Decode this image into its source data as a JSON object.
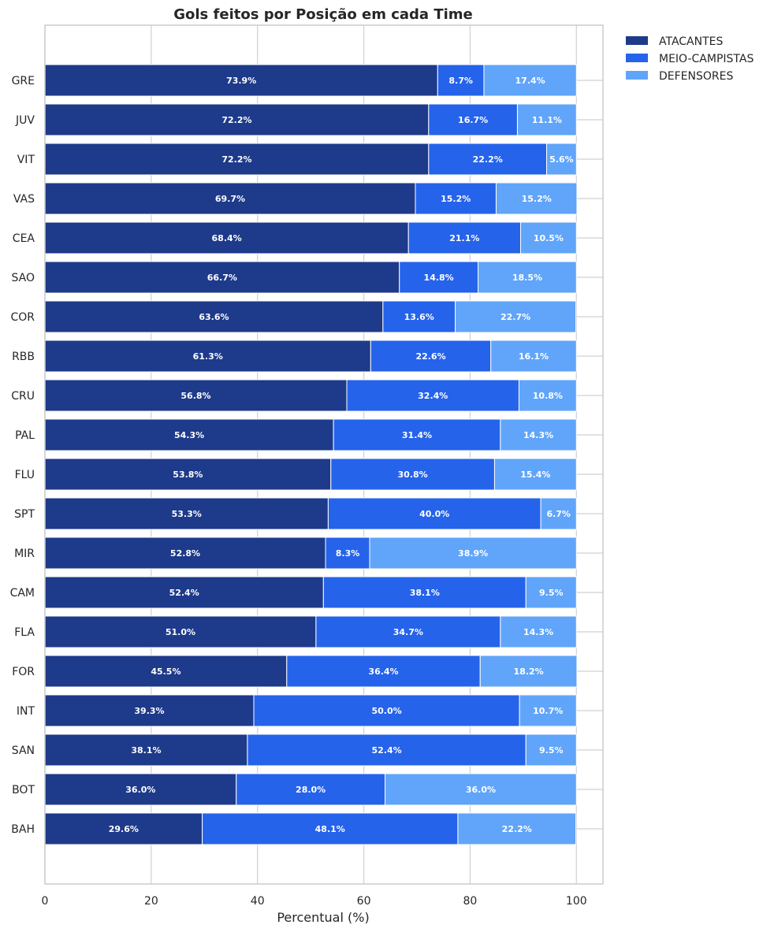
{
  "chart_data": {
    "type": "bar",
    "orientation": "horizontal",
    "stacked": true,
    "title": "Gols feitos por Posição em cada Time",
    "xlabel": "Percentual (%)",
    "ylabel": "",
    "xlim": [
      0,
      105
    ],
    "xticks": [
      0,
      20,
      40,
      60,
      80,
      100
    ],
    "grid": true,
    "legend_position": "outside top-right",
    "categories": [
      "GRE",
      "JUV",
      "VIT",
      "VAS",
      "CEA",
      "SAO",
      "COR",
      "RBB",
      "CRU",
      "PAL",
      "FLU",
      "SPT",
      "MIR",
      "CAM",
      "FLA",
      "FOR",
      "INT",
      "SAN",
      "BOT",
      "BAH"
    ],
    "series": [
      {
        "name": "ATACANTES",
        "color": "#1e3a8a",
        "values": [
          73.9,
          72.2,
          72.2,
          69.7,
          68.4,
          66.7,
          63.6,
          61.3,
          56.8,
          54.3,
          53.8,
          53.3,
          52.8,
          52.4,
          51.0,
          45.5,
          39.3,
          38.1,
          36.0,
          29.6
        ]
      },
      {
        "name": "MEIO-CAMPISTAS",
        "color": "#2563eb",
        "values": [
          8.7,
          16.7,
          22.2,
          15.2,
          21.1,
          14.8,
          13.6,
          22.6,
          32.4,
          31.4,
          30.8,
          40.0,
          8.3,
          38.1,
          34.7,
          36.4,
          50.0,
          52.4,
          28.0,
          48.1
        ]
      },
      {
        "name": "DEFENSORES",
        "color": "#60a5fa",
        "values": [
          17.4,
          11.1,
          5.6,
          15.2,
          10.5,
          18.5,
          22.7,
          16.1,
          10.8,
          14.3,
          15.4,
          6.7,
          38.9,
          9.5,
          14.3,
          18.2,
          10.7,
          9.5,
          36.0,
          22.2
        ]
      }
    ],
    "data_labels": [
      [
        "73.9%",
        "8.7%",
        "17.4%"
      ],
      [
        "72.2%",
        "16.7%",
        "11.1%"
      ],
      [
        "72.2%",
        "22.2%",
        "5.6%"
      ],
      [
        "69.7%",
        "15.2%",
        "15.2%"
      ],
      [
        "68.4%",
        "21.1%",
        "10.5%"
      ],
      [
        "66.7%",
        "14.8%",
        "18.5%"
      ],
      [
        "63.6%",
        "13.6%",
        "22.7%"
      ],
      [
        "61.3%",
        "22.6%",
        "16.1%"
      ],
      [
        "56.8%",
        "32.4%",
        "10.8%"
      ],
      [
        "54.3%",
        "31.4%",
        "14.3%"
      ],
      [
        "53.8%",
        "30.8%",
        "15.4%"
      ],
      [
        "53.3%",
        "40.0%",
        "6.7%"
      ],
      [
        "52.8%",
        "8.3%",
        "38.9%"
      ],
      [
        "52.4%",
        "38.1%",
        "9.5%"
      ],
      [
        "51.0%",
        "34.7%",
        "14.3%"
      ],
      [
        "45.5%",
        "36.4%",
        "18.2%"
      ],
      [
        "39.3%",
        "50.0%",
        "10.7%"
      ],
      [
        "38.1%",
        "52.4%",
        "9.5%"
      ],
      [
        "36.0%",
        "28.0%",
        "36.0%"
      ],
      [
        "29.6%",
        "48.1%",
        "22.2%"
      ]
    ]
  }
}
